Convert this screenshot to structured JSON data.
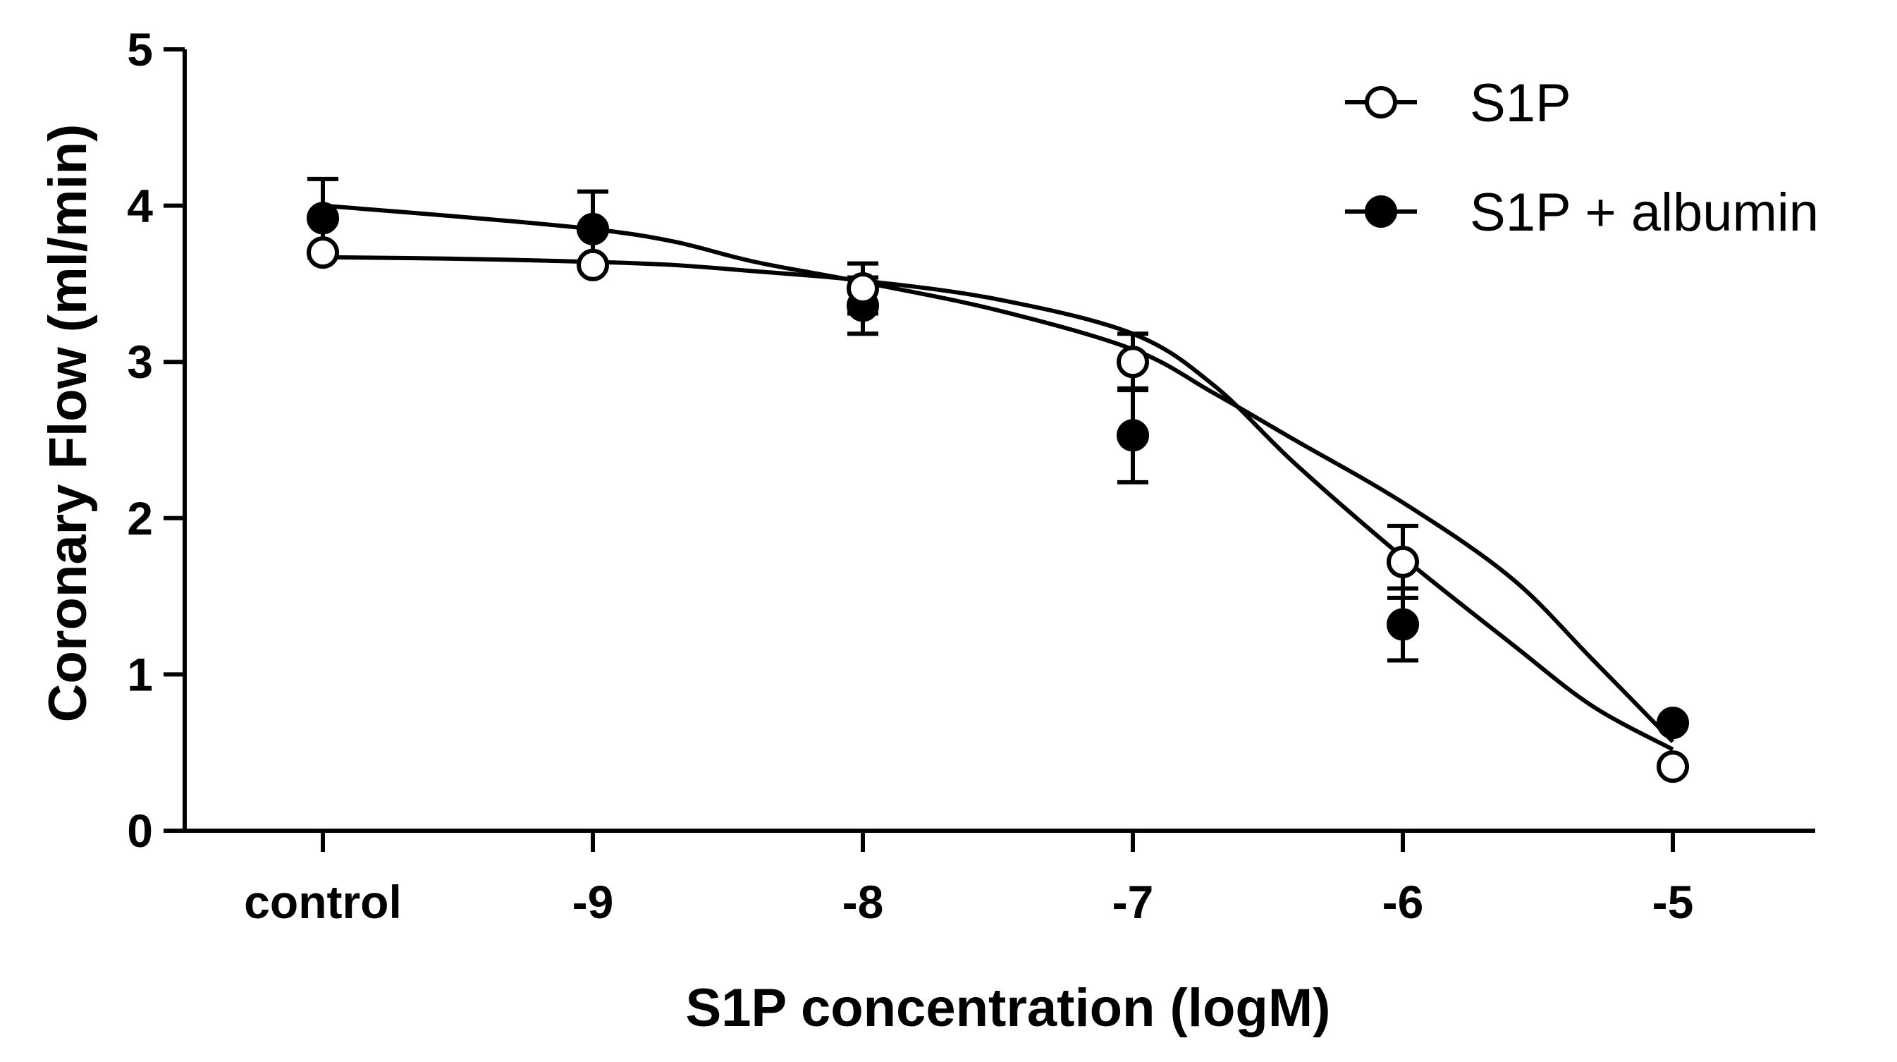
{
  "chart_data": {
    "type": "line",
    "title": "",
    "xlabel": "S1P concentration (logM)",
    "ylabel": "Coronary Flow (ml/min)",
    "categories": [
      "control",
      "-9",
      "-8",
      "-7",
      "-6",
      "-5"
    ],
    "ylim": [
      0,
      5
    ],
    "yticks": [
      "0",
      "1",
      "2",
      "3",
      "4",
      "5"
    ],
    "legend_position": "top-right",
    "series": [
      {
        "name": "S1P",
        "marker": "open-circle",
        "values": [
          3.7,
          3.62,
          3.47,
          3.0,
          1.72,
          0.41
        ],
        "errors": [
          0.0,
          0.0,
          0.16,
          0.18,
          0.23,
          0.0
        ],
        "fit": [
          3.67,
          3.66,
          3.64,
          3.62,
          3.58,
          3.52,
          3.4,
          3.18,
          2.85,
          2.35,
          1.75,
          1.2,
          0.8,
          0.52
        ]
      },
      {
        "name": "S1P + albumin",
        "marker": "filled-circle",
        "values": [
          3.92,
          3.85,
          3.36,
          2.53,
          1.32,
          0.69
        ],
        "errors": [
          0.25,
          0.24,
          0.18,
          0.3,
          0.23,
          0.0
        ],
        "fit": [
          4.0,
          3.93,
          3.85,
          3.77,
          3.64,
          3.51,
          3.33,
          3.08,
          2.8,
          2.5,
          2.1,
          1.62,
          1.1,
          0.57
        ]
      }
    ],
    "fit_x": [
      0,
      0.5,
      1,
      1.3,
      1.6,
      2,
      2.5,
      3,
      3.3,
      3.6,
      4,
      4.4,
      4.7,
      5
    ]
  }
}
